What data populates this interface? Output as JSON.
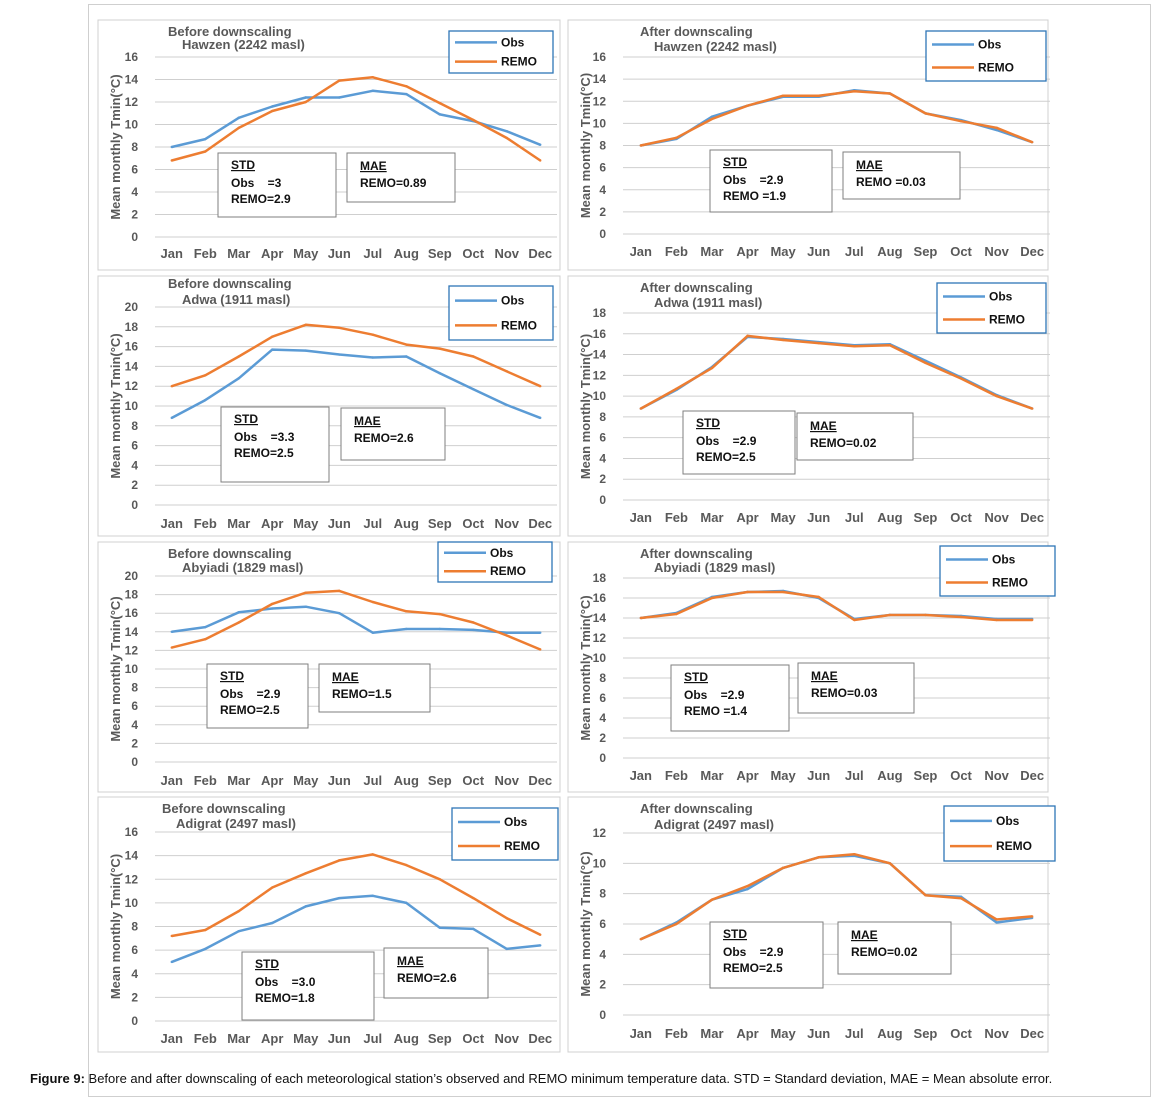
{
  "months": [
    "Jan",
    "Feb",
    "Mar",
    "Apr",
    "May",
    "Jun",
    "Jul",
    "Aug",
    "Sep",
    "Oct",
    "Nov",
    "Dec"
  ],
  "ylabel": "Mean monthly Tmin(°C)",
  "colors": {
    "obs": "#5b9bd5",
    "remo": "#ed7d31"
  },
  "caption": {
    "label": "Figure 9:",
    "text": " Before and after downscaling of each meteorological station’s observed and REMO minimum temperature data. STD = Standard deviation, MAE = Mean absolute error."
  },
  "chart_data": [
    {
      "type": "line",
      "title": "Before downscaling",
      "subtitle": "Hawzen (2242 masl)",
      "ylabel": "Mean monthly Tmin(°C)",
      "ylim": [
        0,
        16
      ],
      "ystep": 2,
      "grid": true,
      "legend": "top-right",
      "categories": [
        "Jan",
        "Feb",
        "Mar",
        "Apr",
        "May",
        "Jun",
        "Jul",
        "Aug",
        "Sep",
        "Oct",
        "Nov",
        "Dec"
      ],
      "series": [
        {
          "name": "Obs",
          "values": [
            8.0,
            8.7,
            10.6,
            11.6,
            12.4,
            12.4,
            13.0,
            12.7,
            10.9,
            10.3,
            9.4,
            8.2
          ]
        },
        {
          "name": "REMO",
          "values": [
            6.8,
            7.6,
            9.7,
            11.2,
            12.0,
            13.9,
            14.2,
            13.4,
            11.9,
            10.4,
            8.8,
            6.8
          ]
        }
      ],
      "std_box": {
        "head": "STD",
        "obs": "Obs    =3",
        "remo": "REMO=2.9"
      },
      "mae_box": {
        "head": "MAE",
        "remo": "REMO=0.89"
      }
    },
    {
      "type": "line",
      "title": "After downscaling",
      "subtitle": "Hawzen (2242 masl)",
      "ylabel": "Mean monthly Tmin(°C)",
      "ylim": [
        0,
        16
      ],
      "ystep": 2,
      "grid": true,
      "legend": "top-right",
      "categories": [
        "Jan",
        "Feb",
        "Mar",
        "Apr",
        "May",
        "Jun",
        "Jul",
        "Aug",
        "Sep",
        "Oct",
        "Nov",
        "Dec"
      ],
      "series": [
        {
          "name": "Obs",
          "values": [
            8.0,
            8.6,
            10.6,
            11.6,
            12.4,
            12.4,
            13.0,
            12.7,
            10.9,
            10.3,
            9.4,
            8.3
          ]
        },
        {
          "name": "REMO",
          "values": [
            8.0,
            8.7,
            10.4,
            11.6,
            12.5,
            12.5,
            12.9,
            12.7,
            10.9,
            10.2,
            9.6,
            8.3
          ]
        }
      ],
      "std_box": {
        "head": "STD",
        "obs": "Obs    =2.9",
        "remo": "REMO =1.9"
      },
      "mae_box": {
        "head": "MAE",
        "remo": "REMO =0.03"
      }
    },
    {
      "type": "line",
      "title": "Before downscaling",
      "subtitle": "Adwa (1911 masl)",
      "ylabel": "Mean monthly Tmin(°C)",
      "ylim": [
        0,
        20
      ],
      "ystep": 2,
      "grid": true,
      "legend": "top-right",
      "categories": [
        "Jan",
        "Feb",
        "Mar",
        "Apr",
        "May",
        "Jun",
        "Jul",
        "Aug",
        "Sep",
        "Oct",
        "Nov",
        "Dec"
      ],
      "series": [
        {
          "name": "Obs",
          "values": [
            8.8,
            10.6,
            12.8,
            15.7,
            15.6,
            15.2,
            14.9,
            15.0,
            13.3,
            11.7,
            10.1,
            8.8
          ]
        },
        {
          "name": "REMO",
          "values": [
            12.0,
            13.1,
            15.0,
            17.0,
            18.2,
            17.9,
            17.2,
            16.2,
            15.8,
            15.0,
            13.5,
            12.0
          ]
        }
      ],
      "std_box": {
        "head": "STD",
        "obs": "Obs    =3.3",
        "remo": "REMO=2.5"
      },
      "mae_box": {
        "head": "MAE",
        "remo": "REMO=2.6"
      }
    },
    {
      "type": "line",
      "title": "After downscaling",
      "subtitle": "Adwa (1911 masl)",
      "ylabel": "Mean monthly Tmin(°C)",
      "ylim": [
        0,
        18
      ],
      "ystep": 2,
      "grid": true,
      "legend": "top-right",
      "categories": [
        "Jan",
        "Feb",
        "Mar",
        "Apr",
        "May",
        "Jun",
        "Jul",
        "Aug",
        "Sep",
        "Oct",
        "Nov",
        "Dec"
      ],
      "series": [
        {
          "name": "Obs",
          "values": [
            8.8,
            10.6,
            12.8,
            15.7,
            15.5,
            15.2,
            14.9,
            15.0,
            13.4,
            11.8,
            10.1,
            8.8
          ]
        },
        {
          "name": "REMO",
          "values": [
            8.8,
            10.7,
            12.7,
            15.8,
            15.4,
            15.1,
            14.8,
            14.9,
            13.2,
            11.7,
            10.0,
            8.8
          ]
        }
      ],
      "std_box": {
        "head": "STD",
        "obs": "Obs    =2.9",
        "remo": "REMO=2.5"
      },
      "mae_box": {
        "head": "MAE",
        "remo": "REMO=0.02"
      }
    },
    {
      "type": "line",
      "title": "Before downscaling",
      "subtitle": "Abyiadi (1829 masl)",
      "ylabel": "Mean monthly Tmin(°C)",
      "ylim": [
        0,
        20
      ],
      "ystep": 2,
      "grid": true,
      "legend": "top-right",
      "categories": [
        "Jan",
        "Feb",
        "Mar",
        "Apr",
        "May",
        "Jun",
        "Jul",
        "Aug",
        "Sep",
        "Oct",
        "Nov",
        "Dec"
      ],
      "series": [
        {
          "name": "Obs",
          "values": [
            14.0,
            14.5,
            16.1,
            16.5,
            16.7,
            16.0,
            13.9,
            14.3,
            14.3,
            14.2,
            13.9,
            13.9
          ]
        },
        {
          "name": "REMO",
          "values": [
            12.3,
            13.2,
            15.0,
            17.0,
            18.2,
            18.4,
            17.2,
            16.2,
            15.9,
            15.0,
            13.6,
            12.1
          ]
        }
      ],
      "std_box": {
        "head": "STD",
        "obs": "Obs    =2.9",
        "remo": "REMO=2.5"
      },
      "mae_box": {
        "head": "MAE",
        "remo": "REMO=1.5"
      }
    },
    {
      "type": "line",
      "title": "After downscaling",
      "subtitle": "Abyiadi (1829 masl)",
      "ylabel": "Mean monthly Tmin(°C)",
      "ylim": [
        0,
        18
      ],
      "ystep": 2,
      "grid": true,
      "legend": "top-right",
      "categories": [
        "Jan",
        "Feb",
        "Mar",
        "Apr",
        "May",
        "Jun",
        "Jul",
        "Aug",
        "Sep",
        "Oct",
        "Nov",
        "Dec"
      ],
      "series": [
        {
          "name": "Obs",
          "values": [
            14.0,
            14.5,
            16.1,
            16.6,
            16.7,
            16.0,
            13.9,
            14.3,
            14.3,
            14.2,
            13.9,
            13.9
          ]
        },
        {
          "name": "REMO",
          "values": [
            14.0,
            14.4,
            16.0,
            16.6,
            16.6,
            16.1,
            13.8,
            14.3,
            14.3,
            14.1,
            13.8,
            13.8
          ]
        }
      ],
      "std_box": {
        "head": "STD",
        "obs": "Obs    =2.9",
        "remo": "REMO =1.4"
      },
      "mae_box": {
        "head": "MAE",
        "remo": "REMO=0.03"
      }
    },
    {
      "type": "line",
      "title": "Before downscaling",
      "subtitle": "Adigrat (2497 masl)",
      "ylabel": "Mean monthly Tmin(°C)",
      "ylim": [
        0,
        16
      ],
      "ystep": 2,
      "grid": true,
      "legend": "top-right",
      "categories": [
        "Jan",
        "Feb",
        "Mar",
        "Apr",
        "May",
        "Jun",
        "Jul",
        "Aug",
        "Sep",
        "Oct",
        "Nov",
        "Dec"
      ],
      "series": [
        {
          "name": "Obs",
          "values": [
            5.0,
            6.1,
            7.6,
            8.3,
            9.7,
            10.4,
            10.6,
            10.0,
            7.9,
            7.8,
            6.1,
            6.4
          ]
        },
        {
          "name": "REMO",
          "values": [
            7.2,
            7.7,
            9.3,
            11.3,
            12.5,
            13.6,
            14.1,
            13.2,
            12.0,
            10.4,
            8.7,
            7.3
          ]
        }
      ],
      "std_box": {
        "head": "STD",
        "obs": "Obs    =3.0",
        "remo": "REMO=1.8"
      },
      "mae_box": {
        "head": "MAE",
        "remo": "REMO=2.6"
      }
    },
    {
      "type": "line",
      "title": "After downscaling",
      "subtitle": "Adigrat (2497 masl)",
      "ylabel": "Mean monthly Tmin(°C)",
      "ylim": [
        0,
        12
      ],
      "ystep": 2,
      "grid": true,
      "legend": "top-right",
      "categories": [
        "Jan",
        "Feb",
        "Mar",
        "Apr",
        "May",
        "Jun",
        "Jul",
        "Aug",
        "Sep",
        "Oct",
        "Nov",
        "Dec"
      ],
      "series": [
        {
          "name": "Obs",
          "values": [
            5.0,
            6.1,
            7.6,
            8.3,
            9.7,
            10.4,
            10.5,
            10.0,
            7.9,
            7.8,
            6.1,
            6.4
          ]
        },
        {
          "name": "REMO",
          "values": [
            5.0,
            6.0,
            7.6,
            8.5,
            9.7,
            10.4,
            10.6,
            10.0,
            7.9,
            7.7,
            6.3,
            6.5
          ]
        }
      ],
      "std_box": {
        "head": "STD",
        "obs": "Obs    =2.9",
        "remo": "REMO=2.5"
      },
      "mae_box": {
        "head": "MAE",
        "remo": "REMO=0.02"
      }
    }
  ]
}
